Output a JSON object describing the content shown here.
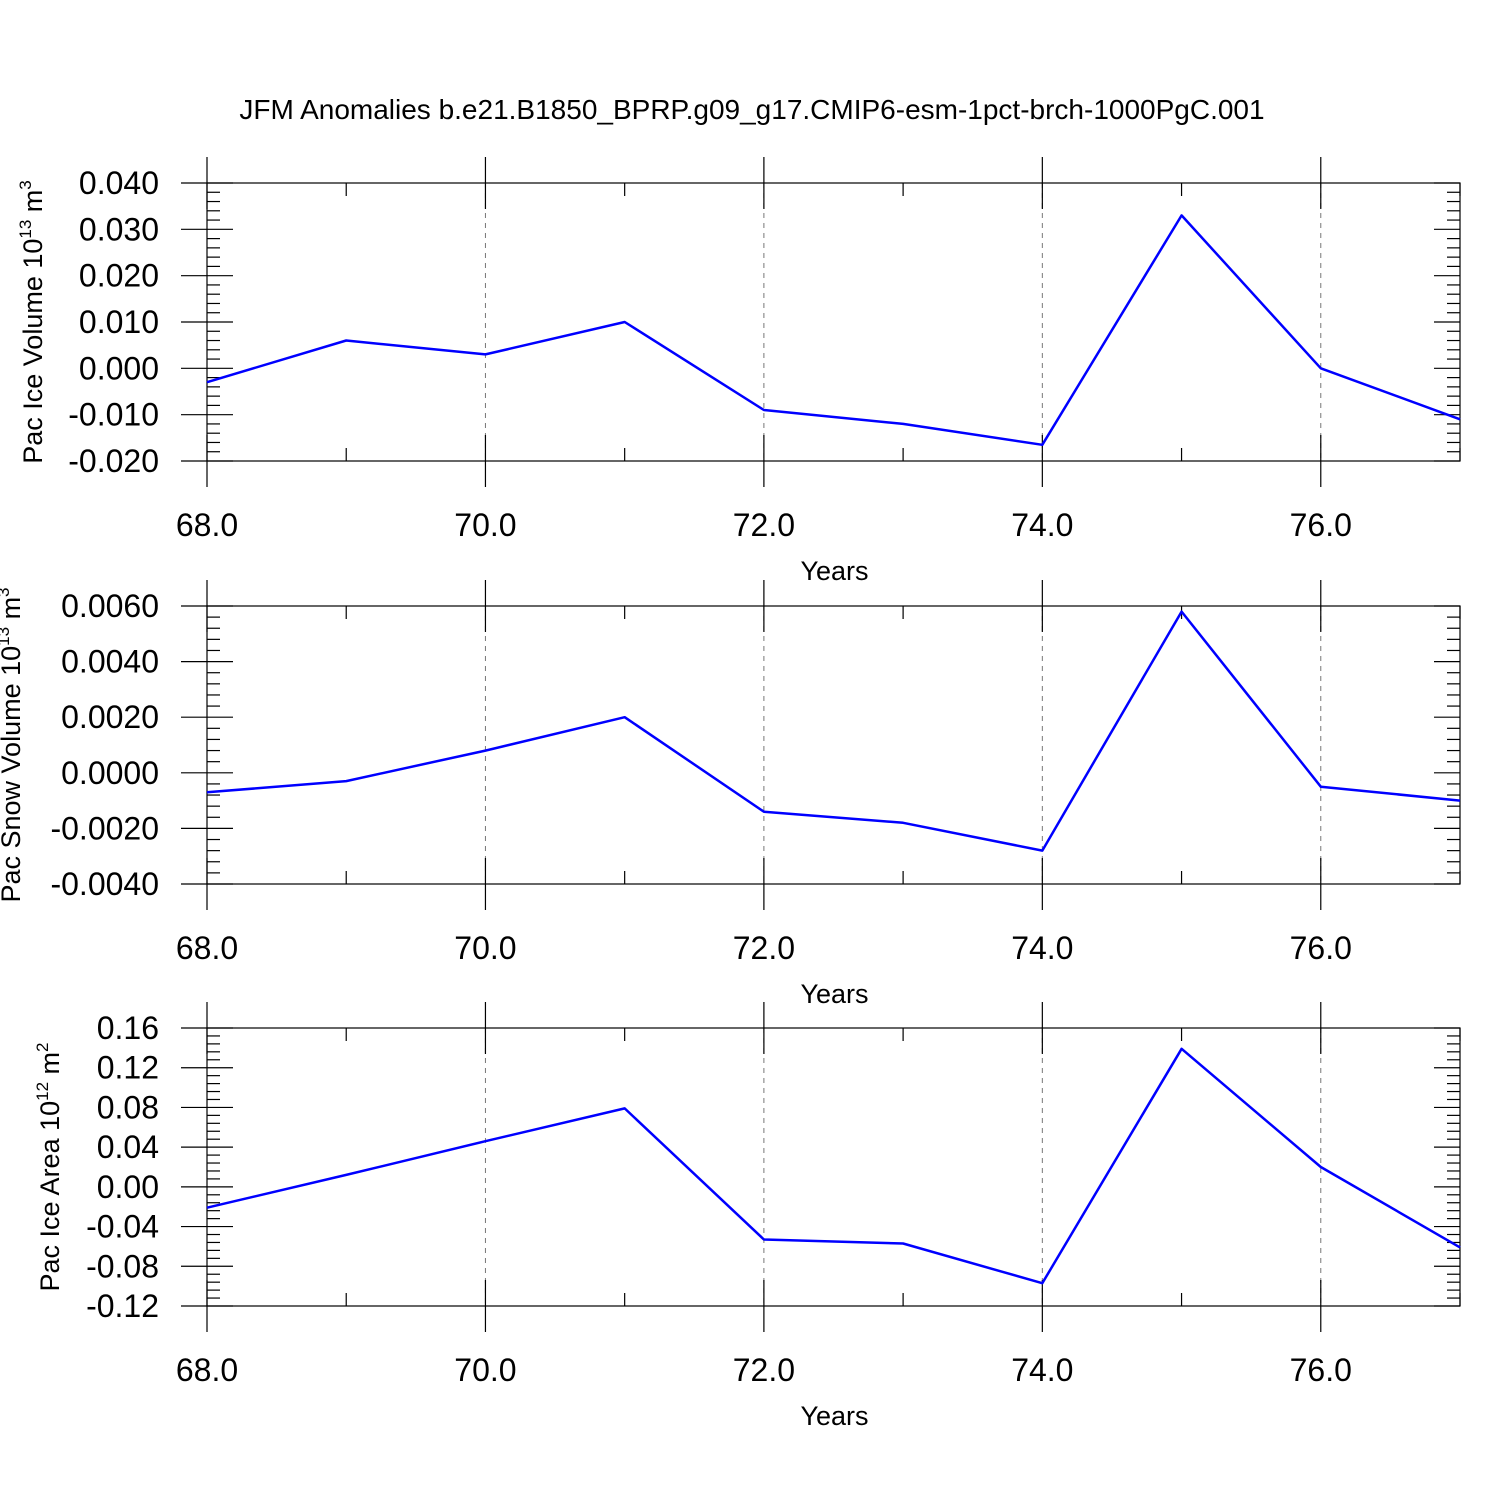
{
  "title": "JFM Anomalies b.e21.B1850_BPRP.g09_g17.CMIP6-esm-1pct-brch-1000PgC.001",
  "chart_data": [
    {
      "type": "line",
      "ylabel": "Pac Ice Volume 10",
      "ylabel_exp": "13",
      "ylabel_unit": " m",
      "ylabel_unit_exp": "3",
      "xlabel": "Years",
      "xlim": [
        68,
        77
      ],
      "ylim": [
        -0.02,
        0.04
      ],
      "x_ticks": [
        68,
        70,
        72,
        74,
        76
      ],
      "x_tick_labels": [
        "68.0",
        "70.0",
        "72.0",
        "74.0",
        "76.0"
      ],
      "y_ticks": [
        -0.02,
        -0.01,
        0.0,
        0.01,
        0.02,
        0.03,
        0.04
      ],
      "y_tick_labels": [
        "-0.020",
        "-0.010",
        "0.000",
        "0.010",
        "0.020",
        "0.030",
        "0.040"
      ],
      "y_minor_step": 0.002,
      "x": [
        68,
        69,
        70,
        71,
        72,
        73,
        74,
        75,
        76,
        77
      ],
      "values": [
        -0.003,
        0.006,
        0.003,
        0.01,
        -0.009,
        -0.012,
        -0.0165,
        0.033,
        0.0,
        -0.011
      ],
      "color": "#0000ff",
      "grid": "vertical-dashed"
    },
    {
      "type": "line",
      "ylabel": "Pac Snow Volume 10",
      "ylabel_exp": "13",
      "ylabel_unit": " m",
      "ylabel_unit_exp": "3",
      "xlabel": "Years",
      "xlim": [
        68,
        77
      ],
      "ylim": [
        -0.004,
        0.006
      ],
      "x_ticks": [
        68,
        70,
        72,
        74,
        76
      ],
      "x_tick_labels": [
        "68.0",
        "70.0",
        "72.0",
        "74.0",
        "76.0"
      ],
      "y_ticks": [
        -0.004,
        -0.002,
        0.0,
        0.002,
        0.004,
        0.006
      ],
      "y_tick_labels": [
        "-0.0040",
        "-0.0020",
        "0.0000",
        "0.0020",
        "0.0040",
        "0.0060"
      ],
      "y_minor_step": 0.0004,
      "x": [
        68,
        69,
        70,
        71,
        72,
        73,
        74,
        75,
        76,
        77
      ],
      "values": [
        -0.0007,
        -0.0003,
        0.0008,
        0.002,
        -0.0014,
        -0.0018,
        -0.0028,
        0.0058,
        -0.0005,
        -0.001
      ],
      "color": "#0000ff",
      "grid": "vertical-dashed"
    },
    {
      "type": "line",
      "ylabel": "Pac Ice Area 10",
      "ylabel_exp": "12",
      "ylabel_unit": " m",
      "ylabel_unit_exp": "2",
      "xlabel": "Years",
      "xlim": [
        68,
        77
      ],
      "ylim": [
        -0.12,
        0.16
      ],
      "x_ticks": [
        68,
        70,
        72,
        74,
        76
      ],
      "x_tick_labels": [
        "68.0",
        "70.0",
        "72.0",
        "74.0",
        "76.0"
      ],
      "y_ticks": [
        -0.12,
        -0.08,
        -0.04,
        0.0,
        0.04,
        0.08,
        0.12,
        0.16
      ],
      "y_tick_labels": [
        "-0.12",
        "-0.08",
        "-0.04",
        "0.00",
        "0.04",
        "0.08",
        "0.12",
        "0.16"
      ],
      "y_minor_step": 0.008,
      "x": [
        68,
        69,
        70,
        71,
        72,
        73,
        74,
        75,
        76,
        77
      ],
      "values": [
        -0.021,
        0.012,
        0.046,
        0.079,
        -0.053,
        -0.057,
        -0.097,
        0.139,
        0.02,
        -0.061
      ],
      "color": "#0000ff",
      "grid": "vertical-dashed"
    }
  ]
}
